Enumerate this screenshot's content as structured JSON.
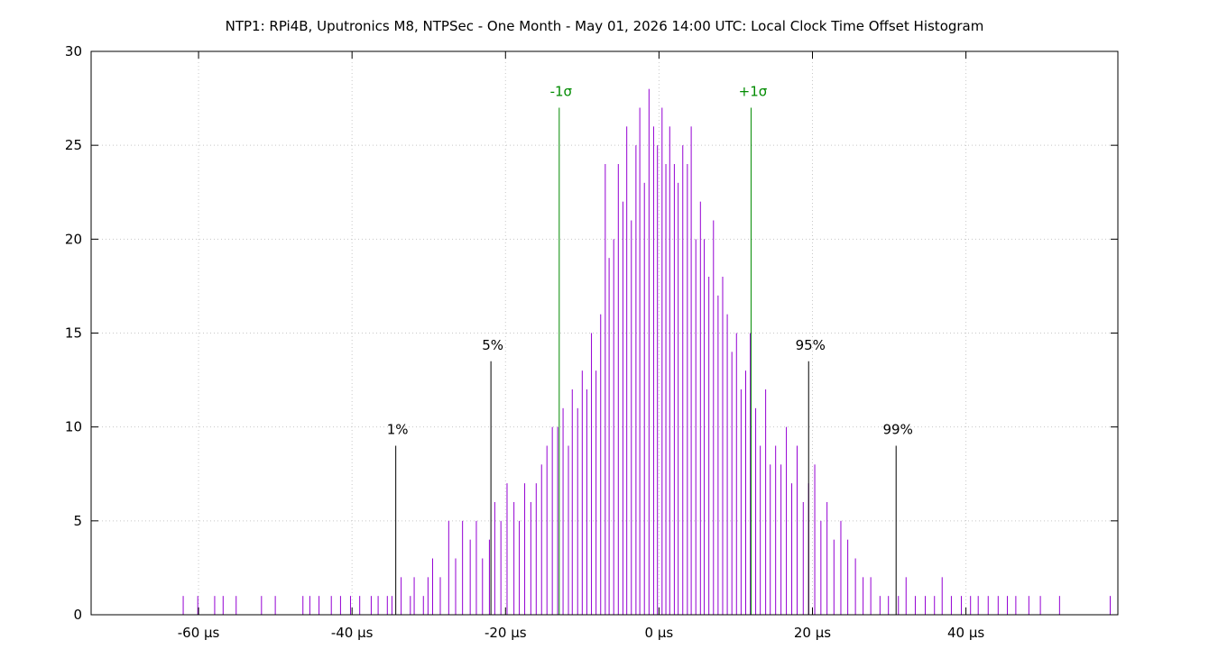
{
  "chart_data": {
    "type": "bar",
    "title": "NTP1: RPi4B, Uputronics M8, NTPSec - One Month - May 01, 2026 14:00 UTC: Local Clock Time Offset Histogram",
    "xlabel": "",
    "ylabel": "",
    "x_unit": "µs",
    "xlim": [
      -74.0,
      59.8
    ],
    "ylim": [
      0,
      30
    ],
    "x_ticks": [
      {
        "value": -60,
        "label": "-60 µs"
      },
      {
        "value": -40,
        "label": "-40 µs"
      },
      {
        "value": -20,
        "label": "-20 µs"
      },
      {
        "value": 0,
        "label": "0 µs"
      },
      {
        "value": 20,
        "label": "20 µs"
      },
      {
        "value": 40,
        "label": "40 µs"
      }
    ],
    "y_ticks": [
      {
        "value": 0,
        "label": "0"
      },
      {
        "value": 5,
        "label": "5"
      },
      {
        "value": 10,
        "label": "10"
      },
      {
        "value": 15,
        "label": "15"
      },
      {
        "value": 20,
        "label": "20"
      },
      {
        "value": 25,
        "label": "25"
      },
      {
        "value": 30,
        "label": "30"
      }
    ],
    "grid": true,
    "bar_color": "#9400d3",
    "bin_width_us": 0.1,
    "series": [
      {
        "points": [
          [
            -62.0,
            1
          ],
          [
            -60.1,
            1
          ],
          [
            -57.9,
            1
          ],
          [
            -56.8,
            1
          ],
          [
            -55.1,
            1
          ],
          [
            -51.8,
            1
          ],
          [
            -50.0,
            1
          ],
          [
            -46.4,
            1
          ],
          [
            -45.5,
            1
          ],
          [
            -44.3,
            1
          ],
          [
            -42.7,
            1
          ],
          [
            -41.5,
            1
          ],
          [
            -40.2,
            1
          ],
          [
            -39.0,
            1
          ],
          [
            -37.5,
            1
          ],
          [
            -36.6,
            1
          ],
          [
            -35.4,
            1
          ],
          [
            -34.8,
            1
          ],
          [
            -33.6,
            2
          ],
          [
            -32.4,
            1
          ],
          [
            -31.9,
            2
          ],
          [
            -30.7,
            1
          ],
          [
            -30.1,
            2
          ],
          [
            -29.5,
            3
          ],
          [
            -28.5,
            2
          ],
          [
            -27.4,
            5
          ],
          [
            -26.5,
            3
          ],
          [
            -25.6,
            5
          ],
          [
            -24.6,
            4
          ],
          [
            -23.8,
            5
          ],
          [
            -23.0,
            3
          ],
          [
            -22.1,
            4
          ],
          [
            -21.4,
            6
          ],
          [
            -20.6,
            5
          ],
          [
            -19.8,
            7
          ],
          [
            -18.9,
            6
          ],
          [
            -18.2,
            5
          ],
          [
            -17.5,
            7
          ],
          [
            -16.7,
            6
          ],
          [
            -16.0,
            7
          ],
          [
            -15.3,
            8
          ],
          [
            -14.6,
            9
          ],
          [
            -13.9,
            10
          ],
          [
            -13.2,
            10
          ],
          [
            -12.5,
            11
          ],
          [
            -11.8,
            9
          ],
          [
            -11.3,
            12
          ],
          [
            -10.6,
            11
          ],
          [
            -10.0,
            13
          ],
          [
            -9.4,
            12
          ],
          [
            -8.8,
            15
          ],
          [
            -8.2,
            13
          ],
          [
            -7.6,
            16
          ],
          [
            -7.0,
            24
          ],
          [
            -6.5,
            19
          ],
          [
            -5.9,
            20
          ],
          [
            -5.3,
            24
          ],
          [
            -4.7,
            22
          ],
          [
            -4.2,
            26
          ],
          [
            -3.6,
            21
          ],
          [
            -3.0,
            25
          ],
          [
            -2.5,
            27
          ],
          [
            -1.9,
            23
          ],
          [
            -1.3,
            28
          ],
          [
            -0.7,
            26
          ],
          [
            -0.2,
            25
          ],
          [
            0.4,
            27
          ],
          [
            0.9,
            24
          ],
          [
            1.4,
            26
          ],
          [
            2.0,
            24
          ],
          [
            2.5,
            23
          ],
          [
            3.1,
            25
          ],
          [
            3.7,
            24
          ],
          [
            4.2,
            26
          ],
          [
            4.8,
            20
          ],
          [
            5.4,
            22
          ],
          [
            5.9,
            20
          ],
          [
            6.5,
            18
          ],
          [
            7.1,
            21
          ],
          [
            7.7,
            17
          ],
          [
            8.3,
            18
          ],
          [
            8.9,
            16
          ],
          [
            9.5,
            14
          ],
          [
            10.1,
            15
          ],
          [
            10.7,
            12
          ],
          [
            11.3,
            13
          ],
          [
            11.9,
            15
          ],
          [
            12.6,
            11
          ],
          [
            13.2,
            9
          ],
          [
            13.9,
            12
          ],
          [
            14.5,
            8
          ],
          [
            15.2,
            9
          ],
          [
            15.9,
            8
          ],
          [
            16.6,
            10
          ],
          [
            17.3,
            7
          ],
          [
            18.0,
            9
          ],
          [
            18.8,
            6
          ],
          [
            19.5,
            7
          ],
          [
            20.3,
            8
          ],
          [
            21.1,
            5
          ],
          [
            21.9,
            6
          ],
          [
            22.8,
            4
          ],
          [
            23.7,
            5
          ],
          [
            24.6,
            4
          ],
          [
            25.6,
            3
          ],
          [
            26.6,
            2
          ],
          [
            27.6,
            2
          ],
          [
            28.8,
            1
          ],
          [
            29.9,
            1
          ],
          [
            31.2,
            1
          ],
          [
            32.2,
            2
          ],
          [
            33.4,
            1
          ],
          [
            34.7,
            1
          ],
          [
            35.9,
            1
          ],
          [
            36.9,
            2
          ],
          [
            38.1,
            1
          ],
          [
            39.4,
            1
          ],
          [
            40.6,
            1
          ],
          [
            41.6,
            1
          ],
          [
            42.9,
            1
          ],
          [
            44.2,
            1
          ],
          [
            45.4,
            1
          ],
          [
            46.5,
            1
          ],
          [
            48.2,
            1
          ],
          [
            49.7,
            1
          ],
          [
            52.2,
            1
          ],
          [
            58.8,
            1
          ]
        ]
      }
    ],
    "annotations": [
      {
        "label": "-1σ",
        "x": -13.0,
        "y": 27,
        "color": "#008b00"
      },
      {
        "label": "+1σ",
        "x": 12.0,
        "y": 27,
        "color": "#008b00"
      },
      {
        "label": "5%",
        "x": -21.9,
        "y": 13.5,
        "color": "#000000"
      },
      {
        "label": "95%",
        "x": 19.5,
        "y": 13.5,
        "color": "#000000"
      },
      {
        "label": "1%",
        "x": -34.3,
        "y": 9,
        "color": "#000000"
      },
      {
        "label": "99%",
        "x": 30.9,
        "y": 9,
        "color": "#000000"
      }
    ]
  }
}
